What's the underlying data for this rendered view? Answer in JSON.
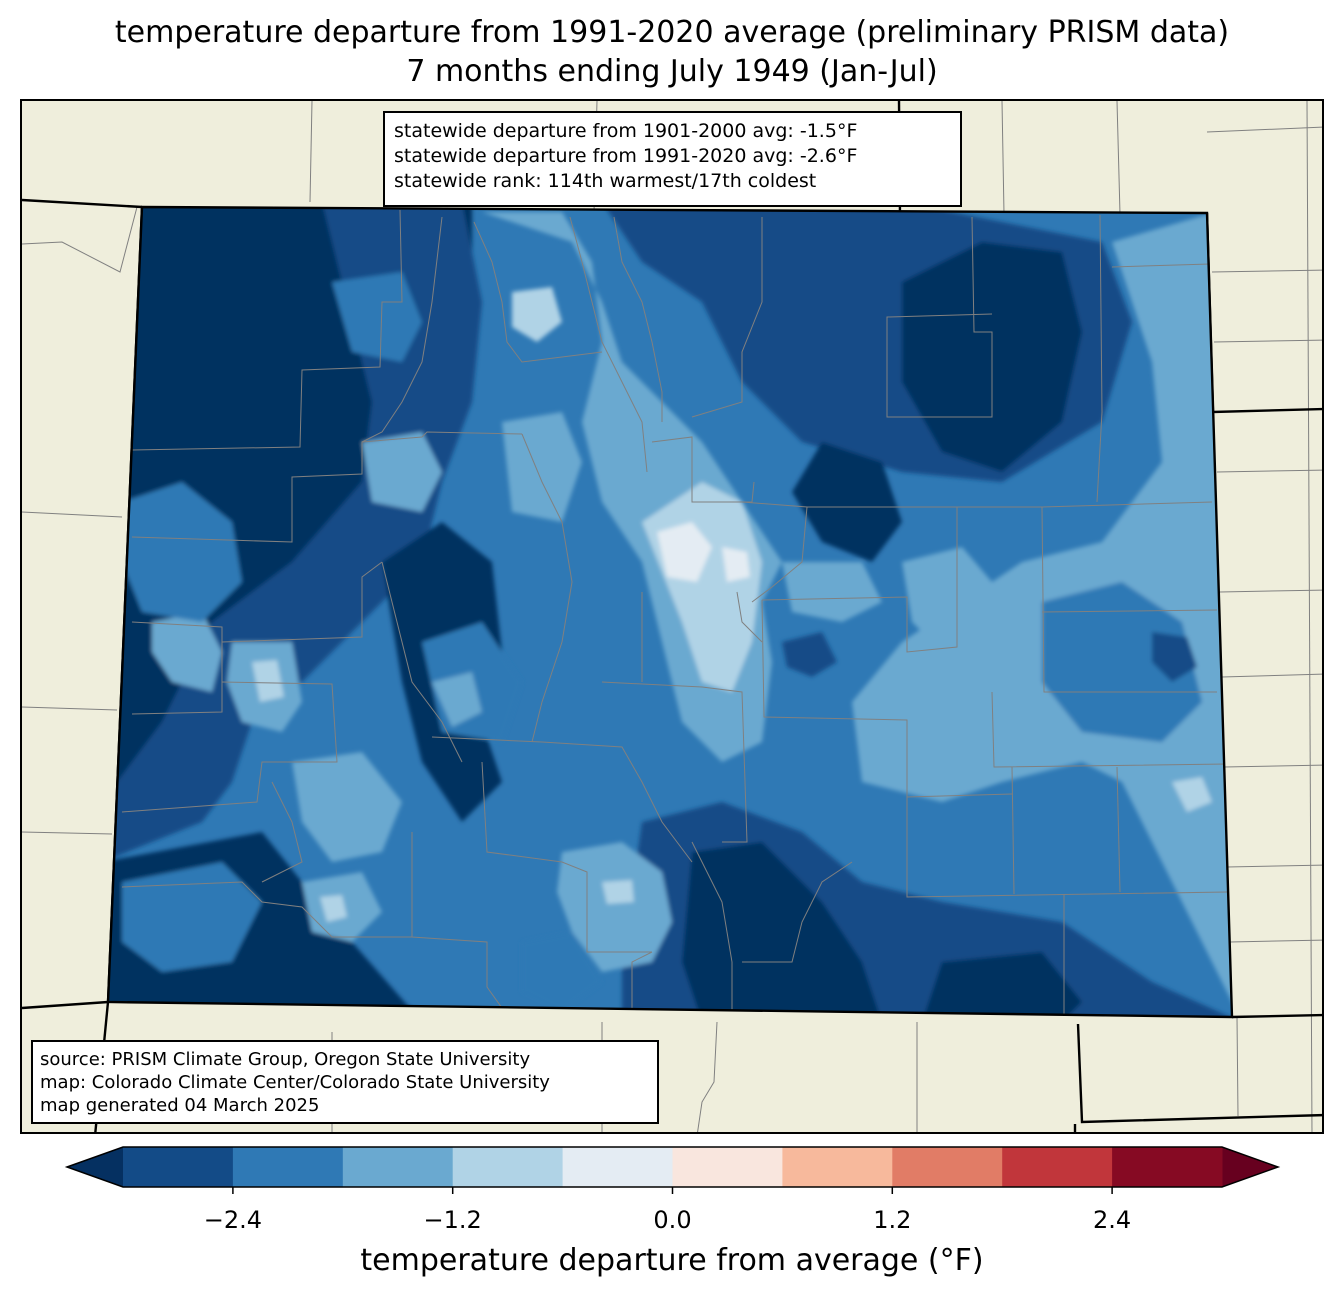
{
  "title": {
    "line1": "temperature departure from 1991-2020 average (preliminary PRISM data)",
    "line2": "7 months ending July 1949 (Jan-Jul)"
  },
  "stats": {
    "departure_1901_2000": "statewide departure from 1901-2000 avg: -1.5°F",
    "departure_1991_2020": "statewide departure from 1991-2020 avg: -2.6°F",
    "rank": "statewide rank: 114th warmest/17th coldest"
  },
  "source": {
    "line1": "source: PRISM Climate Group, Oregon State University",
    "line2": "map: Colorado Climate Center/Colorado State University",
    "line3": "map generated 04 March 2025"
  },
  "colorbar": {
    "label": "temperature departure from average (°F)",
    "ticks": [
      "−2.4",
      "−1.2",
      "0.0",
      "1.2",
      "2.4"
    ],
    "tick_values": [
      -2.4,
      -1.2,
      0.0,
      1.2,
      2.4
    ],
    "boundaries": [
      -3.0,
      -2.4,
      -1.8,
      -1.2,
      -0.6,
      0.0,
      0.6,
      1.2,
      1.8,
      2.4,
      3.0
    ],
    "colors": [
      "#134b87",
      "#2f79b5",
      "#6aa9d0",
      "#b0d3e6",
      "#e4ecf3",
      "#f9e6de",
      "#f7b99c",
      "#e17c66",
      "#c1363b",
      "#860a23"
    ],
    "under_color": "#053061",
    "over_color": "#67001f"
  },
  "map": {
    "background_color": "#efeedc",
    "county_line_color": "#808080",
    "state_border_color": "#000000"
  }
}
